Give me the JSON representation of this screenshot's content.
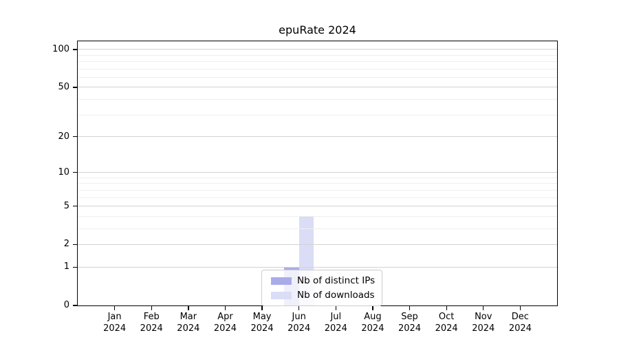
{
  "chart_data": {
    "type": "bar",
    "title": "epuRate 2024",
    "categories": [
      "Jan",
      "Feb",
      "Mar",
      "Apr",
      "May",
      "Jun",
      "Jul",
      "Aug",
      "Sep",
      "Oct",
      "Nov",
      "Dec"
    ],
    "category_year": "2024",
    "series": [
      {
        "name": "Nb of distinct IPs",
        "color": "#a9ace9",
        "values": [
          0,
          0,
          0,
          0,
          0,
          1,
          0,
          0,
          0,
          0,
          0,
          0
        ]
      },
      {
        "name": "Nb of downloads",
        "color": "#dbddf6",
        "values": [
          0,
          0,
          0,
          0,
          0,
          4,
          0,
          0,
          0,
          0,
          0,
          0
        ]
      }
    ],
    "xlabel": "",
    "ylabel": "",
    "yscale": "log1p",
    "ylim": [
      0,
      116
    ],
    "y_ticks": [
      0,
      1,
      2,
      5,
      10,
      20,
      50,
      100
    ],
    "y_minor_gridlines": [
      3,
      4,
      6,
      7,
      8,
      9,
      30,
      40,
      60,
      70,
      80,
      90
    ],
    "grid": true,
    "legend_position": "lower center",
    "colors": {
      "major_grid": "#d2d2d2",
      "minor_grid": "#efefef",
      "spine": "#000000",
      "text": "#000000",
      "background": "#ffffff"
    }
  }
}
